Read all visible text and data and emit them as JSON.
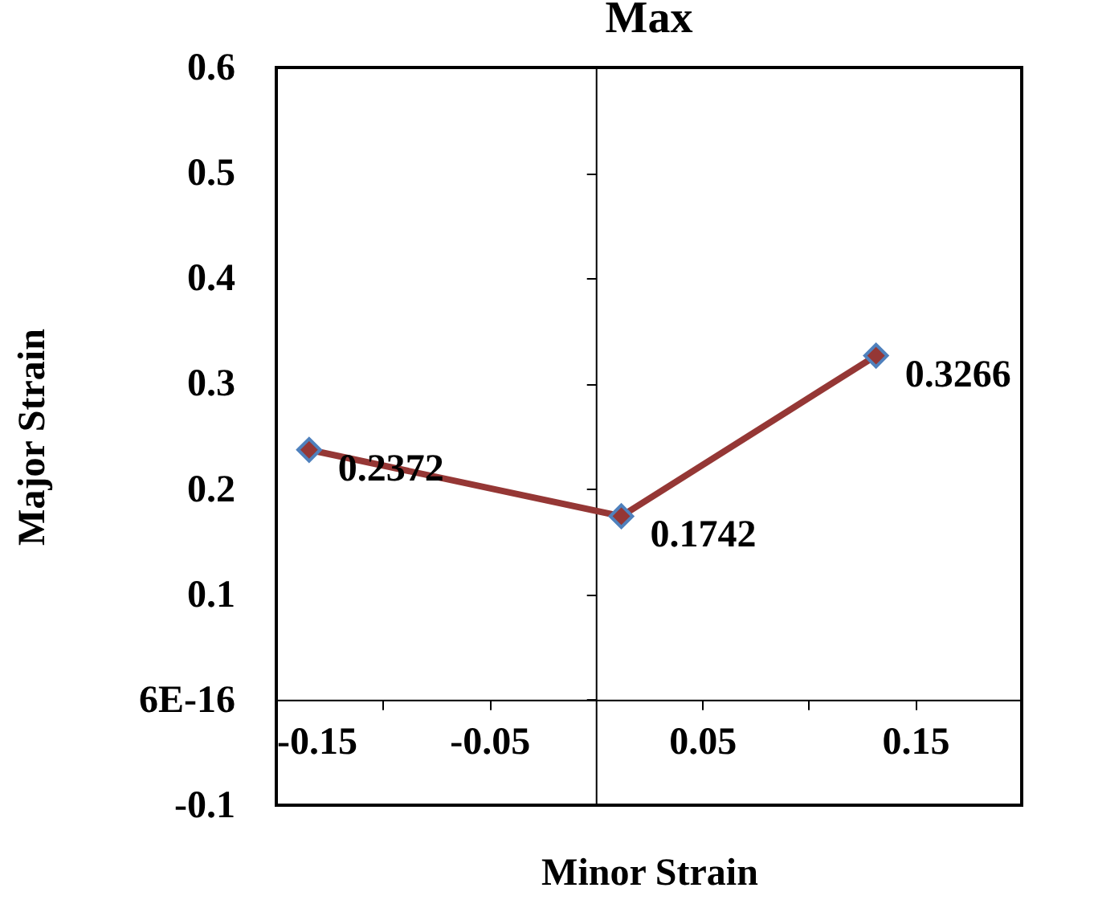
{
  "chart_data": {
    "type": "line",
    "title": "Max",
    "xlabel": "Minor Strain",
    "ylabel": "Major Strain",
    "x": [
      -0.1346,
      0.012,
      0.1316
    ],
    "series": [
      {
        "color": "#953735",
        "values": [
          0.2372,
          0.1742,
          0.3266
        ]
      }
    ],
    "xlim": [
      -0.15,
      0.2
    ],
    "xticks": [
      -0.15,
      {
        "value": -0.1,
        "label": null
      },
      -0.05,
      0.05,
      {
        "value": 0.1,
        "label": null
      },
      0.15
    ],
    "ylim": [
      -0.1,
      0.6
    ],
    "yticks": [
      -0.1,
      {
        "value": 0,
        "label": "6E-16"
      },
      0.1,
      0.2,
      0.3,
      0.4,
      0.5,
      0.6
    ],
    "grid": false,
    "marker": "diamond",
    "line_style": "solid",
    "data_labels": true
  }
}
